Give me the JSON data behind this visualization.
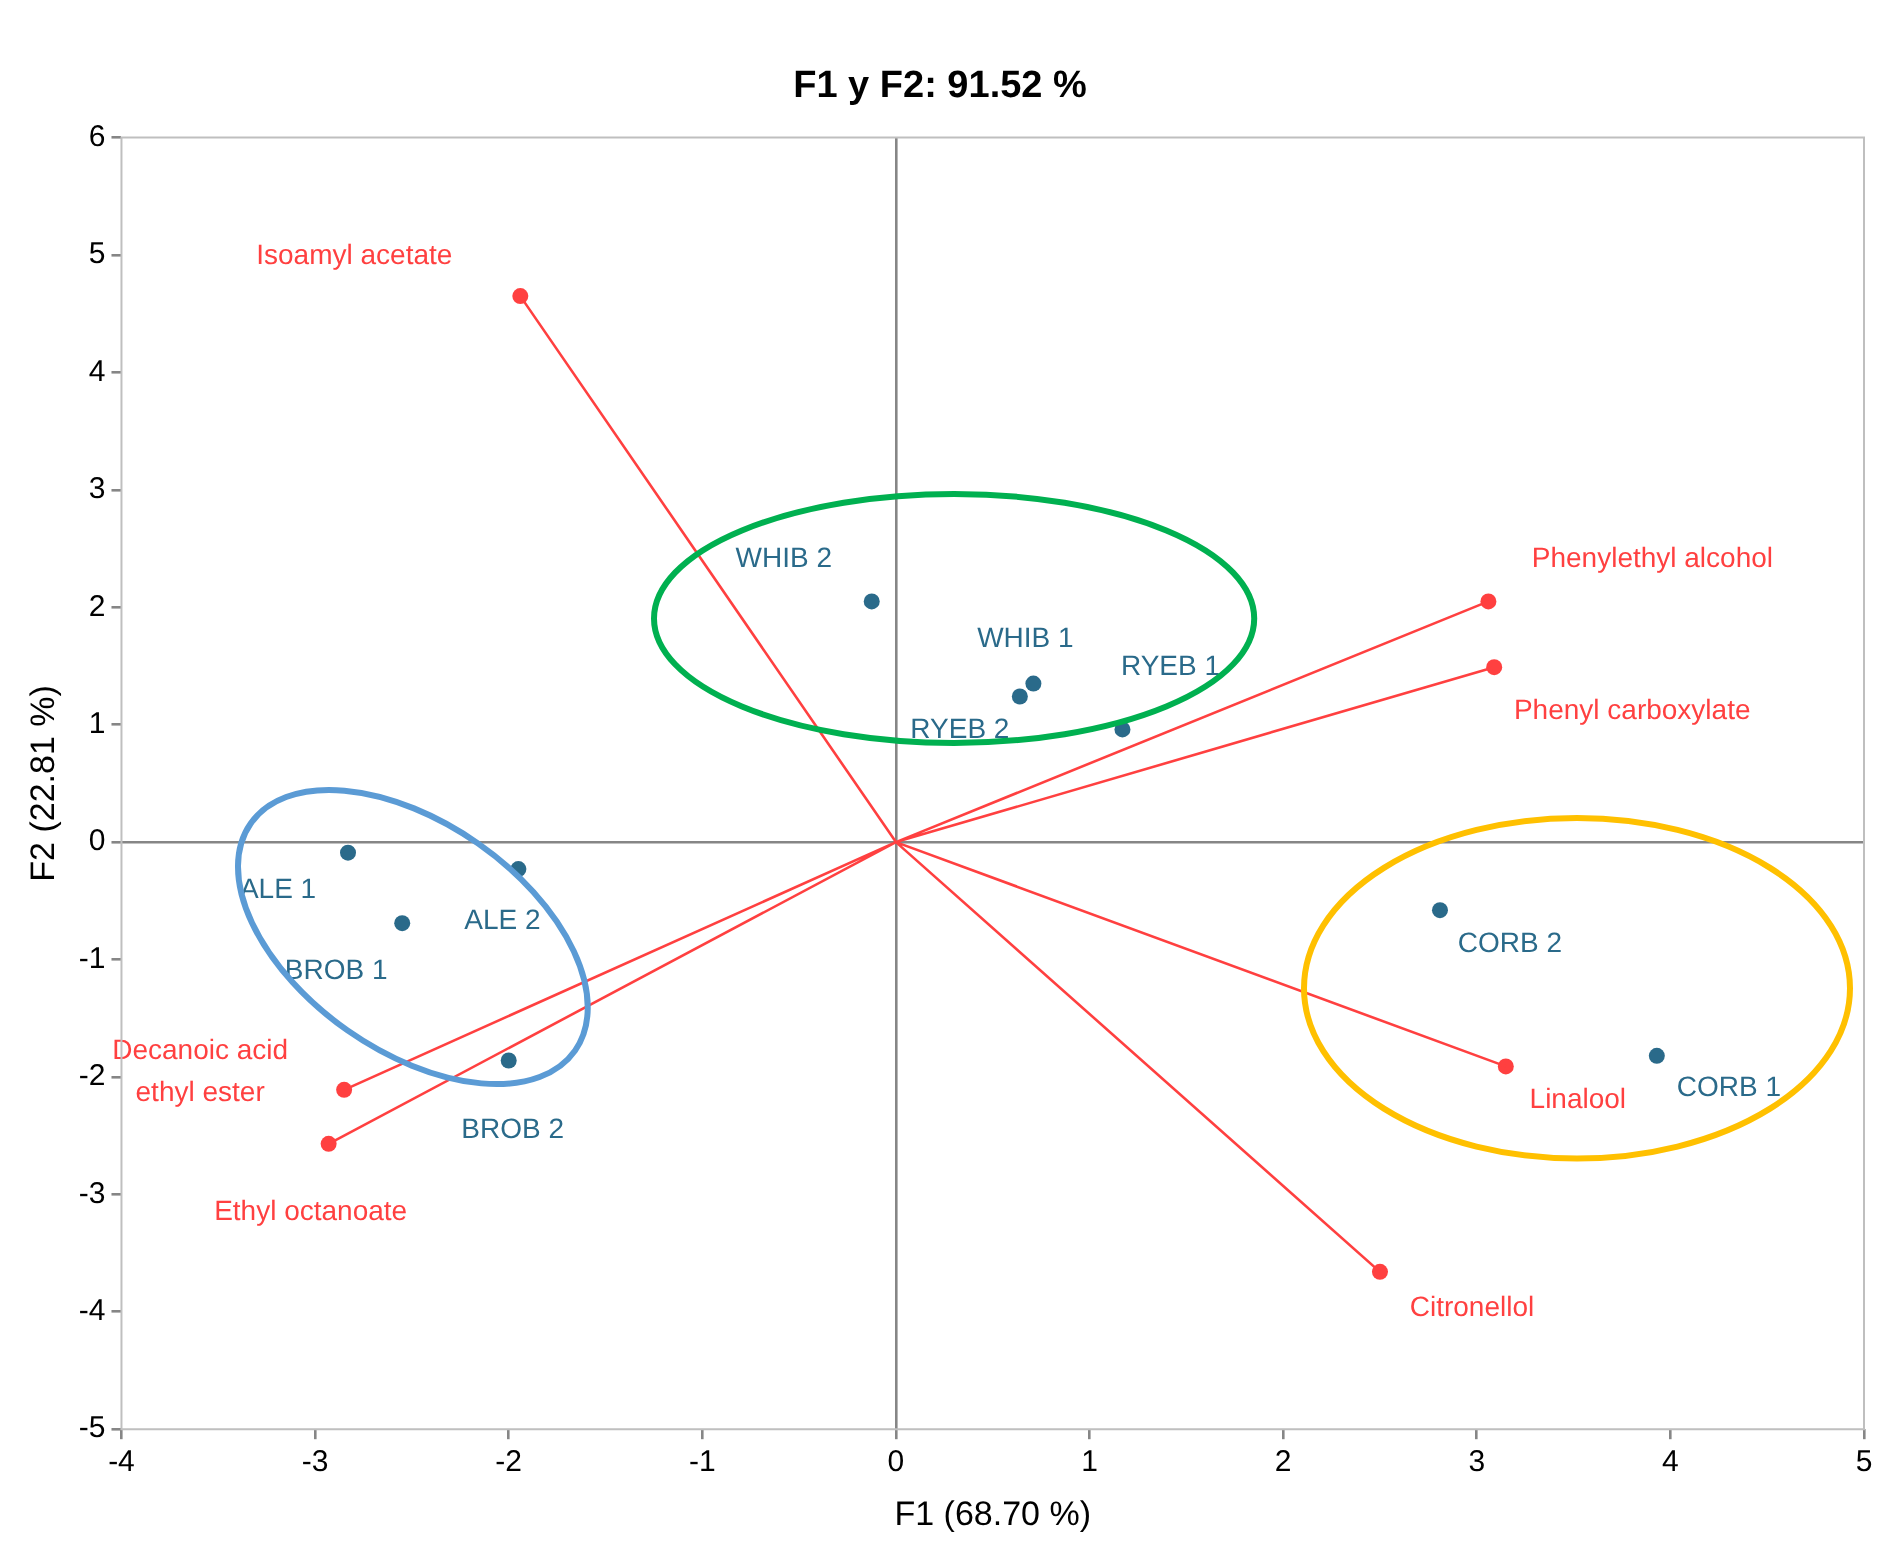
{
  "chart_data": {
    "type": "scatter",
    "title": "F1 y F2: 91.52 %",
    "xlabel": "F1 (68.70 %)",
    "ylabel": "F2 (22.81 %)",
    "xlim": [
      -4,
      5
    ],
    "xticks": [
      -4,
      -3,
      -2,
      -1,
      0,
      1,
      2,
      3,
      4,
      5
    ],
    "ylim": [
      -5,
      6
    ],
    "yticks": [
      -5,
      -4,
      -3,
      -2,
      -1,
      0,
      1,
      2,
      3,
      4,
      5,
      6
    ],
    "marker": "circle",
    "legend": false,
    "series": [
      {
        "type": "line",
        "color": "#ff4040",
        "marker": "none",
        "x": [
          0,
          -1.94,
          null,
          0,
          3.06,
          null,
          0,
          3.09,
          null,
          0,
          3.15,
          null,
          0,
          2.5,
          null,
          0,
          -2.85,
          null,
          0,
          -2.93
        ],
        "values": [
          0,
          4.65,
          null,
          0,
          2.05,
          null,
          0,
          1.49,
          null,
          0,
          -1.91,
          null,
          0,
          -3.66,
          null,
          0,
          -2.11,
          null,
          0,
          -2.57
        ]
      },
      {
        "type": "scatter",
        "color": "#ff4040",
        "x": [
          -1.94,
          3.06,
          3.09,
          3.15,
          2.5,
          -2.85,
          -2.93
        ],
        "values": [
          4.65,
          2.05,
          1.49,
          -1.91,
          -3.66,
          -2.11,
          -2.57
        ]
      },
      {
        "type": "scatter",
        "color": "#2a6a8a",
        "x": [
          -0.125,
          0.71,
          0.64,
          1.17,
          -2.83,
          -1.95,
          -2.55,
          -2.0,
          2.81,
          3.93
        ],
        "values": [
          2.05,
          1.35,
          1.24,
          0.96,
          -0.09,
          -0.23,
          -0.69,
          -1.86,
          -0.58,
          -1.82
        ]
      }
    ],
    "annotations": [
      {
        "text": "Isoamyl acetate",
        "x": -1.94,
        "y": 4.65
      },
      {
        "text": "Phenylethyl alcohol",
        "x": 3.06,
        "y": 2.05
      },
      {
        "text": "Phenyl carboxylate",
        "x": 3.09,
        "y": 1.49
      },
      {
        "text": "Linalool",
        "x": 3.15,
        "y": -1.91
      },
      {
        "text": "Citronellol",
        "x": 2.5,
        "y": -3.66
      },
      {
        "text": "Decanoic acid\nethyl ester",
        "x": -2.85,
        "y": -2.11
      },
      {
        "text": "Ethyl octanoate",
        "x": -2.93,
        "y": -2.57
      },
      {
        "text": "WHIB 2",
        "x": -0.125,
        "y": 2.05
      },
      {
        "text": "WHIB 1",
        "x": 0.71,
        "y": 1.35
      },
      {
        "text": "RYEB 2",
        "x": 0.64,
        "y": 1.24
      },
      {
        "text": "RYEB 1",
        "x": 1.17,
        "y": 0.96
      },
      {
        "text": "ALE 1",
        "x": -2.83,
        "y": -0.09
      },
      {
        "text": "ALE 2",
        "x": -1.95,
        "y": -0.23
      },
      {
        "text": "BROB 1",
        "x": -2.55,
        "y": -0.69
      },
      {
        "text": "BROB 2",
        "x": -2.0,
        "y": -1.86
      },
      {
        "text": "CORB 2",
        "x": 2.81,
        "y": -0.58
      },
      {
        "text": "CORB 1",
        "x": 3.93,
        "y": -1.82
      }
    ]
  }
}
